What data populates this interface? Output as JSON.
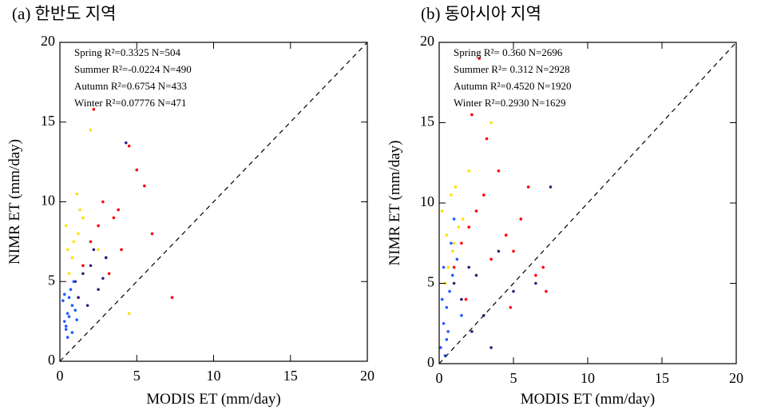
{
  "chart_data": [
    {
      "type": "scatter",
      "title": "(a) 한반도 지역",
      "x_label": "MODIS ET (mm/day)",
      "y_label": "NIMR ET (mm/day)",
      "xlim": [
        0,
        20
      ],
      "ylim": [
        0,
        20
      ],
      "xticks": [
        0,
        5,
        10,
        15,
        20
      ],
      "yticks": [
        0,
        5,
        10,
        15,
        20
      ],
      "series": [
        {
          "name": "Spring R²=0.3325  N=504",
          "color": "#ffe000",
          "x": [
            0.5,
            0.8,
            1.2,
            0.6,
            1.5,
            2.0,
            0.9,
            1.1,
            2.5,
            4.5,
            0.4,
            1.3
          ],
          "y": [
            7.0,
            6.5,
            8.0,
            5.5,
            9.0,
            14.5,
            7.5,
            10.5,
            7.0,
            3.0,
            8.5,
            9.5
          ]
        },
        {
          "name": "Summer R²=-0.0224 N=490",
          "color": "#ff0000",
          "x": [
            1.5,
            2.0,
            2.5,
            3.0,
            3.5,
            4.0,
            4.5,
            5.0,
            2.8,
            6.0,
            7.3,
            3.2,
            2.2,
            3.8,
            5.5
          ],
          "y": [
            6.0,
            7.5,
            8.5,
            6.5,
            9.0,
            7.0,
            13.5,
            12.0,
            10.0,
            8.0,
            4.0,
            5.5,
            15.8,
            9.5,
            11.0
          ]
        },
        {
          "name": "Autumn R²=0.6754  N=433",
          "color": "#3a1a80",
          "x": [
            1.0,
            1.5,
            2.0,
            2.5,
            3.0,
            1.8,
            4.3,
            2.2,
            1.2,
            2.8
          ],
          "y": [
            5.0,
            5.5,
            6.0,
            4.5,
            6.5,
            3.5,
            13.7,
            7.0,
            4.0,
            5.2
          ]
        },
        {
          "name": "Winter R²=0.07776  N=471",
          "color": "#1e5cff",
          "x": [
            0.3,
            0.5,
            0.6,
            0.8,
            0.4,
            0.7,
            1.0,
            0.5,
            0.9,
            0.6,
            0.2,
            0.4,
            0.8,
            0.3,
            1.1
          ],
          "y": [
            2.5,
            3.0,
            4.0,
            3.5,
            2.0,
            4.5,
            3.2,
            1.5,
            5.0,
            2.8,
            3.8,
            2.2,
            1.8,
            4.2,
            2.6
          ]
        }
      ]
    },
    {
      "type": "scatter",
      "title": "(b) 동아시아 지역",
      "x_label": "MODIS ET (mm/day)",
      "y_label": "NIMR ET (mm/day)",
      "xlim": [
        0,
        20
      ],
      "ylim": [
        0,
        20
      ],
      "xticks": [
        0,
        5,
        10,
        15,
        20
      ],
      "yticks": [
        0,
        5,
        10,
        15,
        20
      ],
      "series": [
        {
          "name": "Spring R²= 0.360    N=2696",
          "color": "#ffe000",
          "x": [
            0.2,
            0.5,
            0.8,
            1.0,
            1.3,
            0.6,
            1.6,
            2.0,
            0.4,
            1.1,
            3.5,
            0.9
          ],
          "y": [
            9.5,
            8.0,
            10.5,
            7.5,
            8.5,
            6.0,
            9.0,
            12.0,
            5.0,
            11.0,
            15.0,
            7.0
          ]
        },
        {
          "name": "Summer R²= 0.312    N=2928",
          "color": "#ff0000",
          "x": [
            1.0,
            1.5,
            2.0,
            2.5,
            3.0,
            3.5,
            4.0,
            4.5,
            5.0,
            5.5,
            6.0,
            6.5,
            7.0,
            2.2,
            3.2,
            1.8,
            2.7,
            4.8,
            7.2
          ],
          "y": [
            6.0,
            7.5,
            8.5,
            9.5,
            10.5,
            6.5,
            12.0,
            8.0,
            7.0,
            9.0,
            11.0,
            5.5,
            6.0,
            15.5,
            14.0,
            4.0,
            19.0,
            3.5,
            4.5
          ]
        },
        {
          "name": "Autumn R²=0.4520   N=1920",
          "color": "#3a1a80",
          "x": [
            1.0,
            1.5,
            2.0,
            2.5,
            3.0,
            4.0,
            5.0,
            6.5,
            7.5,
            2.2,
            3.5
          ],
          "y": [
            5.0,
            4.0,
            6.0,
            5.5,
            3.0,
            7.0,
            4.5,
            5.0,
            11.0,
            2.0,
            1.0
          ]
        },
        {
          "name": "Winter R²=0.2930   N=1629",
          "color": "#1e5cff",
          "x": [
            0.1,
            0.3,
            0.5,
            0.7,
            0.9,
            1.2,
            0.4,
            0.6,
            0.2,
            0.8,
            1.5,
            1.0,
            0.3,
            0.5
          ],
          "y": [
            1.0,
            2.5,
            3.5,
            4.5,
            5.5,
            6.5,
            0.5,
            2.0,
            4.0,
            7.5,
            3.0,
            9.0,
            6.0,
            1.5
          ]
        }
      ]
    }
  ]
}
